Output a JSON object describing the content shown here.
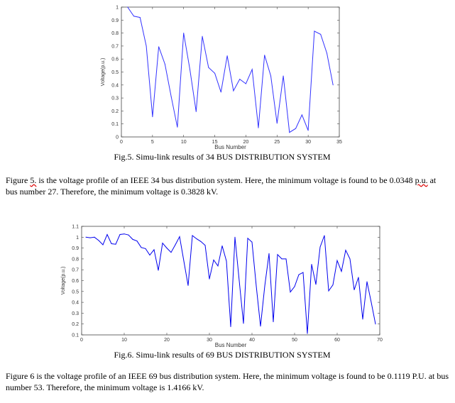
{
  "figure5": {
    "caption": "Fig.5. Simu-link results of 34 BUS DISTRIBUTION SYSTEM",
    "paragraph_start": "Figure ",
    "paragraph_ref": "5.",
    "paragraph_mid1": " is the voltage profile of an IEEE 34 bus distribution system. Here, the minimum voltage is found to be 0.0348 ",
    "paragraph_unit": "p.u.",
    "paragraph_end": " at bus number 27. Therefore, the minimum voltage is 0.3828 kV."
  },
  "figure6": {
    "caption": "Fig.6. Simu-link results of 69 BUS DISTRIBUTION SYSTEM",
    "paragraph": "Figure 6 is the voltage profile of an IEEE 69 bus distribution system. Here, the minimum voltage is found to be 0.1119 P.U. at bus number 53. Therefore, the minimum voltage is 1.4166 kV."
  },
  "chart_data": [
    {
      "type": "line",
      "title": "",
      "xlabel": "Bus Number",
      "ylabel": "Voltage(p.u.)",
      "xlim": [
        0,
        35
      ],
      "ylim": [
        0,
        1
      ],
      "xticks": [
        0,
        5,
        10,
        15,
        20,
        25,
        30,
        35
      ],
      "yticks": [
        0,
        0.1,
        0.2,
        0.3,
        0.4,
        0.5,
        0.6,
        0.7,
        0.8,
        0.9,
        1
      ],
      "color": "#3333ff",
      "x": [
        1,
        2,
        3,
        4,
        5,
        6,
        7,
        8,
        9,
        10,
        11,
        12,
        13,
        14,
        15,
        16,
        17,
        18,
        19,
        20,
        21,
        22,
        23,
        24,
        25,
        26,
        27,
        28,
        29,
        30,
        31,
        32,
        33,
        34
      ],
      "values": [
        1.0,
        0.93,
        0.92,
        0.7,
        0.155,
        0.695,
        0.56,
        0.31,
        0.075,
        0.8,
        0.52,
        0.195,
        0.775,
        0.535,
        0.49,
        0.345,
        0.625,
        0.355,
        0.445,
        0.41,
        0.52,
        0.07,
        0.63,
        0.47,
        0.105,
        0.47,
        0.035,
        0.065,
        0.17,
        0.05,
        0.815,
        0.79,
        0.645,
        0.4
      ]
    },
    {
      "type": "line",
      "title": "",
      "xlabel": "Bus Number",
      "ylabel": "Voltage(p.u.)",
      "xlim": [
        0,
        70
      ],
      "ylim": [
        0.1,
        1.1
      ],
      "xticks": [
        0,
        10,
        20,
        30,
        40,
        50,
        60,
        70
      ],
      "yticks": [
        0.1,
        0.2,
        0.3,
        0.4,
        0.5,
        0.6,
        0.7,
        0.8,
        0.9,
        1,
        1.1
      ],
      "color": "#0000ee",
      "x": [
        1,
        2,
        3,
        4,
        5,
        6,
        7,
        8,
        9,
        10,
        11,
        12,
        13,
        14,
        15,
        16,
        17,
        18,
        19,
        20,
        21,
        22,
        23,
        24,
        25,
        26,
        27,
        28,
        29,
        30,
        31,
        32,
        33,
        34,
        35,
        36,
        37,
        38,
        39,
        40,
        41,
        42,
        43,
        44,
        45,
        46,
        47,
        48,
        49,
        50,
        51,
        52,
        53,
        54,
        55,
        56,
        57,
        58,
        59,
        60,
        61,
        62,
        63,
        64,
        65,
        66,
        67,
        68,
        69
      ],
      "values": [
        1.0,
        0.995,
        1.0,
        0.97,
        0.93,
        1.025,
        0.94,
        0.935,
        1.025,
        1.03,
        1.02,
        0.98,
        0.965,
        0.905,
        0.895,
        0.835,
        0.885,
        0.695,
        0.945,
        0.9,
        0.86,
        0.93,
        1.005,
        0.78,
        0.555,
        1.015,
        0.985,
        0.96,
        0.925,
        0.615,
        0.79,
        0.735,
        0.92,
        0.78,
        0.175,
        1.0,
        0.6,
        0.205,
        0.99,
        0.955,
        0.55,
        0.18,
        0.55,
        0.85,
        0.22,
        0.84,
        0.8,
        0.8,
        0.495,
        0.545,
        0.655,
        0.675,
        0.112,
        0.75,
        0.565,
        0.91,
        1.015,
        0.505,
        0.56,
        0.785,
        0.685,
        0.88,
        0.8,
        0.515,
        0.63,
        0.245,
        0.59,
        0.4,
        0.2
      ]
    }
  ]
}
